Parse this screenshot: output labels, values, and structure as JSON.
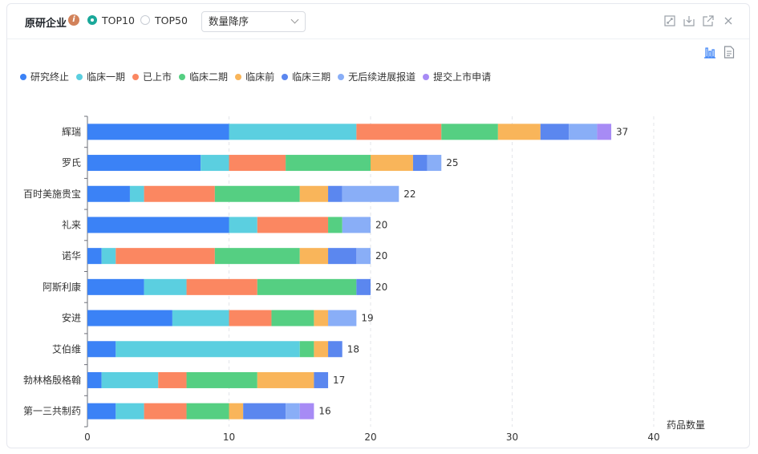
{
  "header": {
    "title": "原研企业",
    "info_icon": "i",
    "radio_top10": "TOP10",
    "radio_top50": "TOP50",
    "sort_select": "数量降序"
  },
  "toolbar_icons": [
    "expand-icon",
    "download-icon",
    "external-link-icon",
    "close-icon"
  ],
  "view_icons": [
    "bar-chart-icon",
    "document-icon"
  ],
  "legend": [
    {
      "name": "研究终止",
      "color": "#3b82f6"
    },
    {
      "name": "临床一期",
      "color": "#5bcfe0"
    },
    {
      "name": "已上市",
      "color": "#fb8761"
    },
    {
      "name": "临床二期",
      "color": "#55cf82"
    },
    {
      "name": "临床前",
      "color": "#f9b55a"
    },
    {
      "name": "临床三期",
      "color": "#5b87ef"
    },
    {
      "name": "无后续进展报道",
      "color": "#89aef7"
    },
    {
      "name": "提交上市申请",
      "color": "#a78bf5"
    }
  ],
  "chart_data": {
    "type": "bar",
    "orientation": "horizontal",
    "stacked": true,
    "categories": [
      "辉瑞",
      "罗氏",
      "百时美施贵宝",
      "礼来",
      "诺华",
      "阿斯利康",
      "安进",
      "艾伯维",
      "勃林格殷格翰",
      "第一三共制药"
    ],
    "series": [
      {
        "name": "研究终止",
        "values": [
          10,
          8,
          3,
          10,
          1,
          4,
          6,
          2,
          1,
          2
        ]
      },
      {
        "name": "临床一期",
        "values": [
          9,
          2,
          1,
          2,
          1,
          3,
          4,
          13,
          4,
          2
        ]
      },
      {
        "name": "已上市",
        "values": [
          6,
          4,
          5,
          5,
          7,
          5,
          3,
          0,
          2,
          3
        ]
      },
      {
        "name": "临床二期",
        "values": [
          4,
          6,
          6,
          1,
          6,
          7,
          3,
          1,
          5,
          3
        ]
      },
      {
        "name": "临床前",
        "values": [
          3,
          3,
          2,
          0,
          2,
          0,
          1,
          1,
          4,
          1
        ]
      },
      {
        "name": "临床三期",
        "values": [
          2,
          1,
          1,
          0,
          2,
          1,
          0,
          1,
          1,
          3
        ]
      },
      {
        "name": "无后续进展报道",
        "values": [
          2,
          1,
          4,
          2,
          1,
          0,
          2,
          0,
          0,
          1
        ]
      },
      {
        "name": "提交上市申请",
        "values": [
          1,
          0,
          0,
          0,
          0,
          0,
          0,
          0,
          0,
          1
        ]
      }
    ],
    "totals": [
      37,
      25,
      22,
      20,
      20,
      20,
      19,
      18,
      17,
      16
    ],
    "xlim": [
      0,
      40
    ],
    "xticks": [
      0,
      10,
      20,
      30,
      40
    ],
    "xlabel": "药品数量",
    "grid": true,
    "legend_position": "top-left"
  }
}
